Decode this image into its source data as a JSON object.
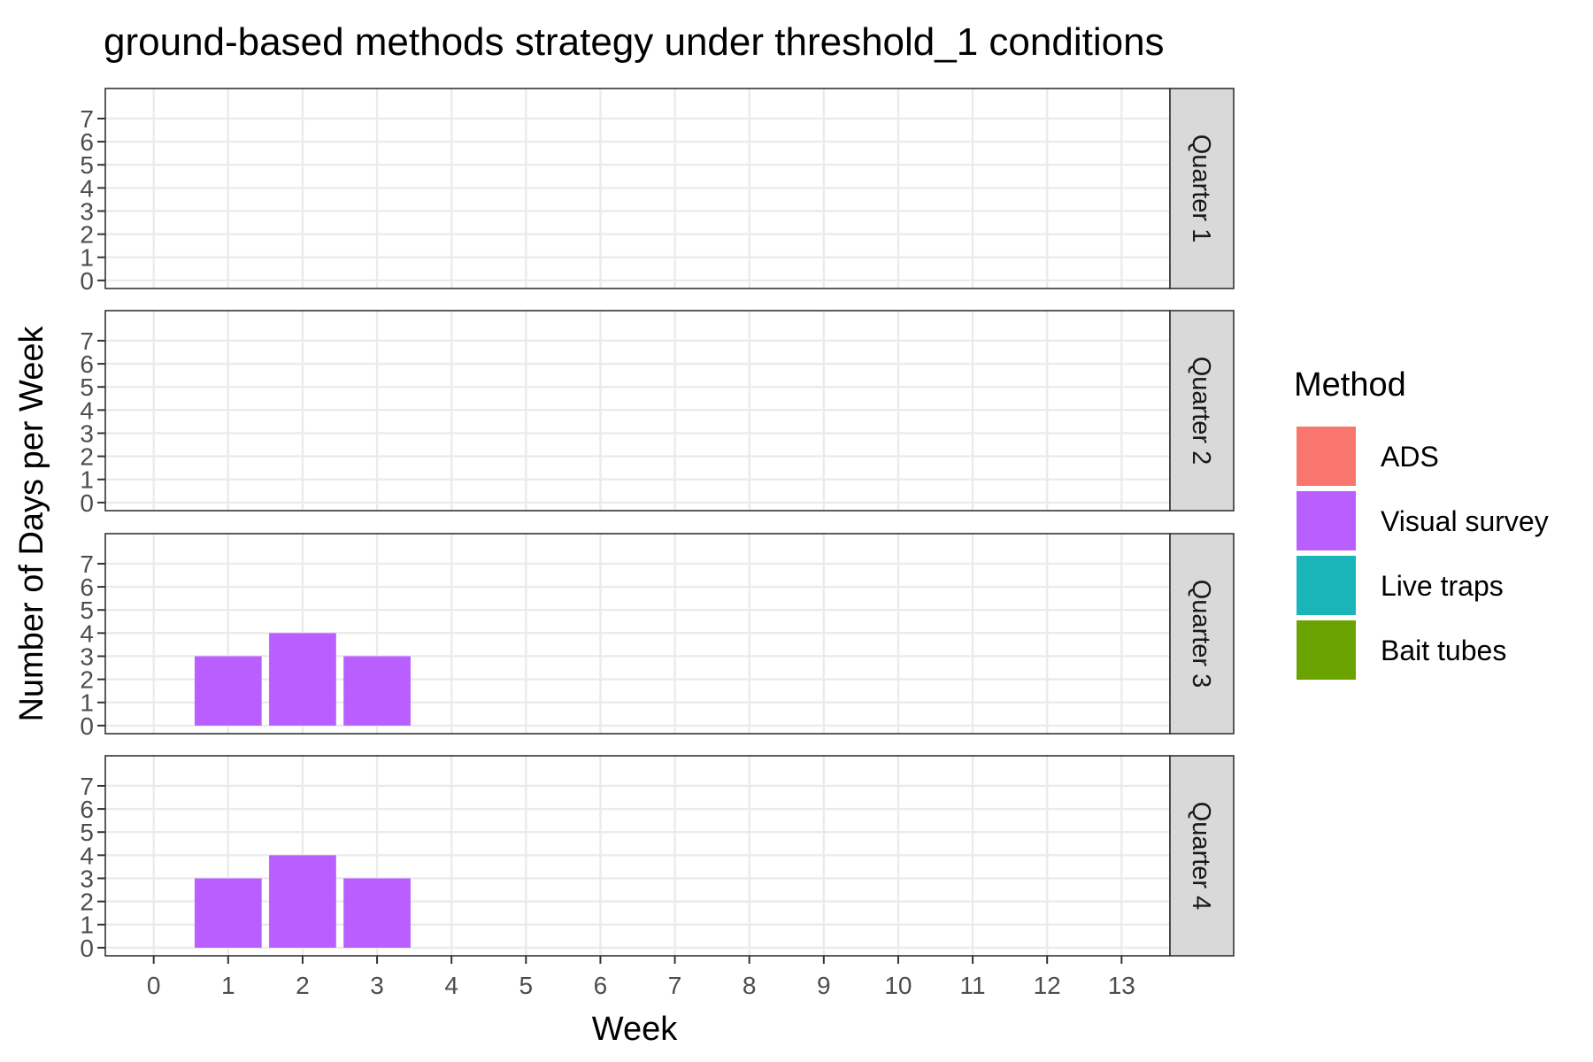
{
  "chart_data": {
    "type": "bar",
    "title": "ground-based methods strategy under threshold_1 conditions",
    "xlabel": "Week",
    "ylabel": "Number of Days per Week",
    "x_ticks": [
      "0",
      "1",
      "2",
      "3",
      "4",
      "5",
      "6",
      "7",
      "8",
      "9",
      "10",
      "11",
      "12",
      "13"
    ],
    "y_ticks": [
      "0",
      "1",
      "2",
      "3",
      "4",
      "5",
      "6",
      "7"
    ],
    "xlim": [
      -0.65,
      13.65
    ],
    "ylim": [
      -0.35,
      8.3
    ],
    "grid": true,
    "legend_position": "right",
    "legend": {
      "title": "Method",
      "items": [
        {
          "label": "ADS",
          "color": "#F8766D"
        },
        {
          "label": "Visual survey",
          "color": "#B95FFF"
        },
        {
          "label": "Live traps",
          "color": "#19B5B8"
        },
        {
          "label": "Bait tubes",
          "color": "#6BA300"
        }
      ]
    },
    "facets": [
      {
        "label": "Quarter 1",
        "series": []
      },
      {
        "label": "Quarter 2",
        "series": []
      },
      {
        "label": "Quarter 3",
        "series": [
          {
            "method": "Visual survey",
            "x": [
              1,
              2,
              3
            ],
            "values": [
              3,
              4,
              3
            ]
          }
        ]
      },
      {
        "label": "Quarter 4",
        "series": [
          {
            "method": "Visual survey",
            "x": [
              1,
              2,
              3
            ],
            "values": [
              3,
              4,
              3
            ]
          }
        ]
      }
    ]
  }
}
